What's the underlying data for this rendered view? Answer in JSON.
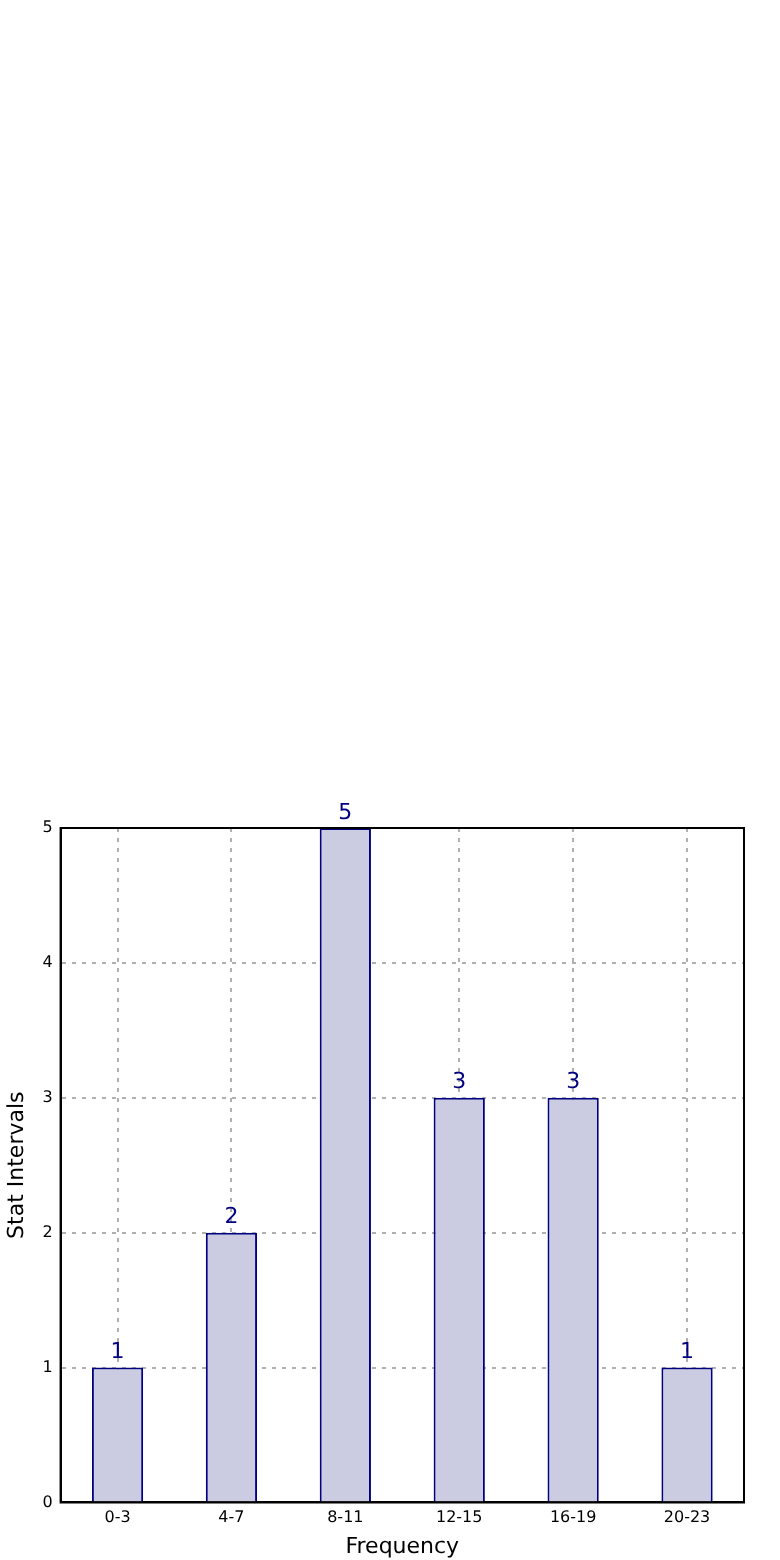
{
  "chart_data": {
    "type": "bar",
    "xlabel": "Frequency",
    "ylabel": "Stat Intervals",
    "categories": [
      "0-3",
      "4-7",
      "8-11",
      "12-15",
      "16-19",
      "20-23"
    ],
    "values": [
      1,
      2,
      5,
      3,
      3,
      1
    ],
    "color": "#cbcbe2",
    "ylim": [
      0,
      5
    ],
    "yticks": [
      0,
      1,
      2,
      3,
      4,
      5
    ],
    "grid": true,
    "data_labels": true
  }
}
